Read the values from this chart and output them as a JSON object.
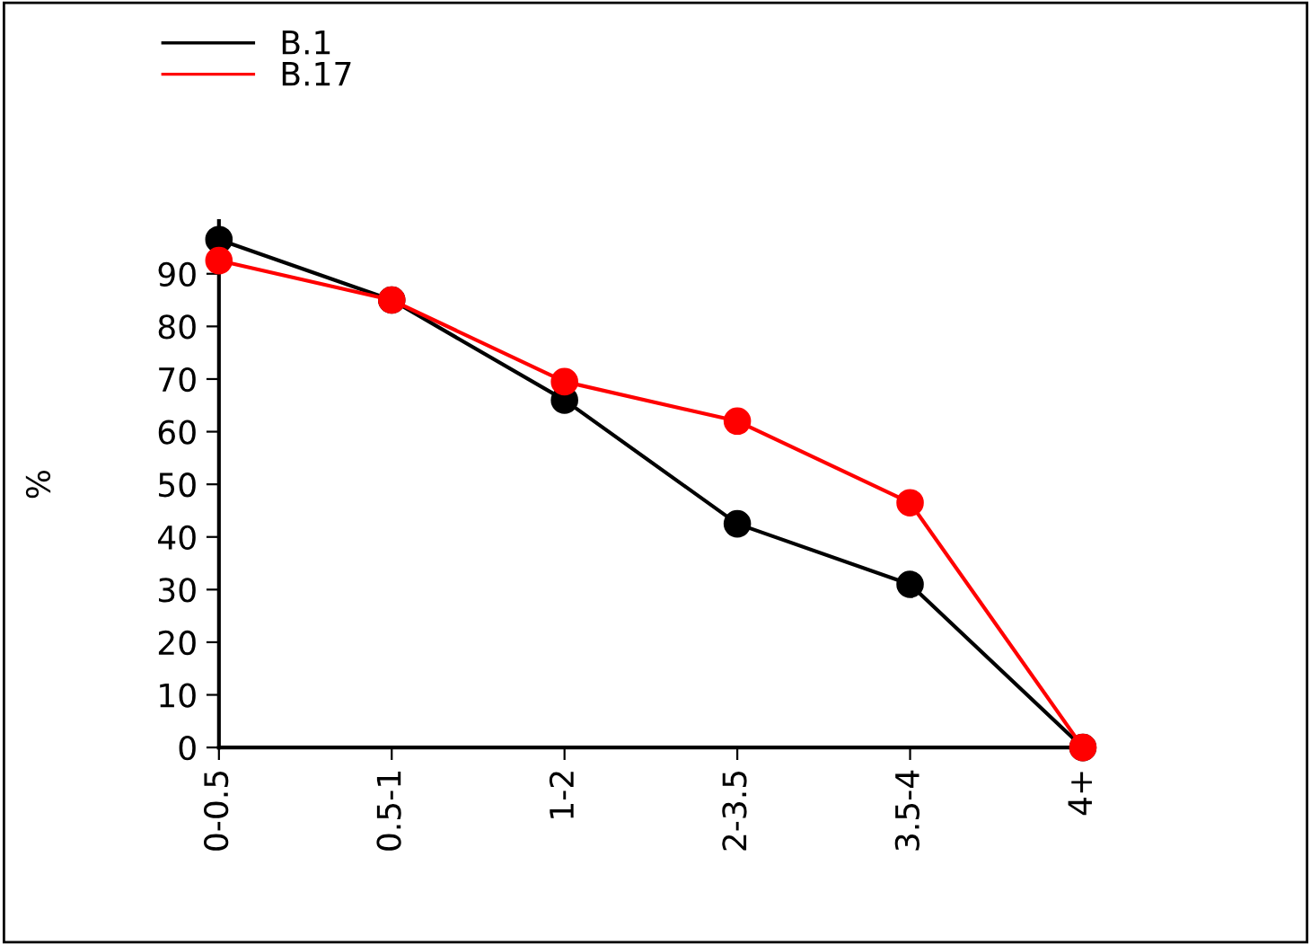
{
  "chart_data": {
    "type": "line",
    "ylabel": "%",
    "categories": [
      "0-0.5",
      "0.5-1",
      "1-2",
      "2-3.5",
      "3.5-4",
      "4+"
    ],
    "series": [
      {
        "name": "B.1",
        "color": "#000000",
        "values": [
          96.5,
          85,
          66,
          42.5,
          31,
          0
        ]
      },
      {
        "name": "B.17",
        "color": "#ff0000",
        "values": [
          92.5,
          85,
          69.5,
          62,
          46.5,
          0
        ]
      }
    ],
    "ylim": [
      0,
      100
    ],
    "yticks": [
      0,
      10,
      20,
      30,
      40,
      50,
      60,
      70,
      80,
      90
    ],
    "grid": false,
    "legend": "top left",
    "marker": "circle",
    "line_style": "solid"
  }
}
